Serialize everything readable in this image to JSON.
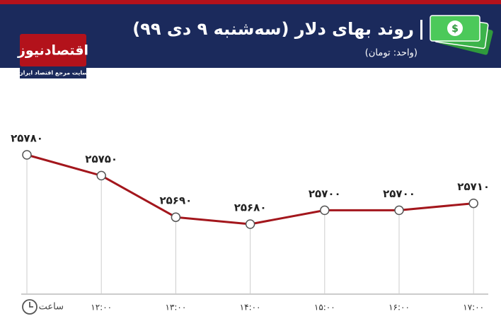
{
  "logo": {
    "name": "اقتصادنیوز",
    "caption": "سایت مرجع اقتصاد ایران"
  },
  "chart_data": {
    "type": "line",
    "title": "روند بهای دلار (سه‌شنبه ۹ دی ۹۹)",
    "subtitle": "(واحد: تومان)",
    "x_label": "ساعت",
    "categories": [
      null,
      "۱۲:۰۰",
      "۱۳:۰۰",
      "۱۴:۰۰",
      "۱۵:۰۰",
      "۱۶:۰۰",
      "۱۷:۰۰"
    ],
    "series": [
      {
        "name": "دلار",
        "color": "#a3161c",
        "values": [
          25780,
          25750,
          25690,
          25680,
          25700,
          25700,
          25710
        ],
        "value_labels": [
          "۲۵۷۸۰",
          "۲۵۷۵۰",
          "۲۵۶۹۰",
          "۲۵۶۸۰",
          "۲۵۷۰۰",
          "۲۵۷۰۰",
          "۲۵۷۱۰"
        ]
      }
    ]
  }
}
